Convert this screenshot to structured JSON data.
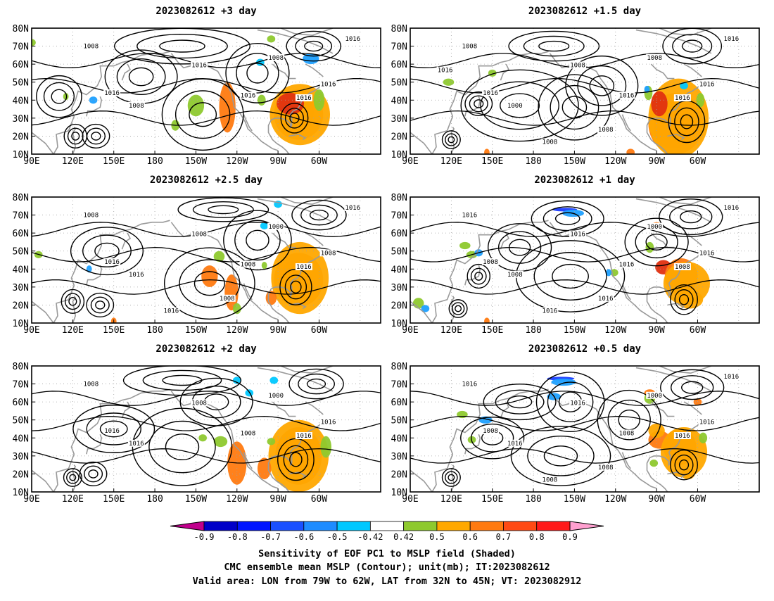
{
  "panels": [
    {
      "title": "2023082612  +3 day",
      "contour_labels": [
        "1008",
        "1016",
        "1008",
        "1016",
        "1008",
        "1016",
        "1016",
        "1016",
        "1016"
      ],
      "blobs": [
        [
          -78,
          33,
          14,
          11,
          "#ff1a1a"
        ],
        [
          -75,
          32,
          18,
          14,
          "#ff7a10"
        ],
        [
          -74,
          32,
          22,
          17,
          "#ffa800"
        ],
        [
          -81,
          38,
          10,
          6,
          "#e03010"
        ],
        [
          -127,
          36,
          6,
          14,
          "#ff7a10"
        ],
        [
          -150,
          37,
          6,
          6,
          "#8ec92e"
        ],
        [
          -165,
          26,
          3,
          3,
          "#8ec92e"
        ],
        [
          -102,
          40,
          3,
          3,
          "#8ec92e"
        ],
        [
          -60,
          40,
          4,
          6,
          "#8ec92e"
        ],
        [
          -95,
          74,
          3,
          2,
          "#8ec92e"
        ],
        [
          -66,
          63,
          6,
          3,
          "#1ea0ff"
        ],
        [
          -103,
          61,
          3,
          2,
          "#00c8ff"
        ],
        [
          135,
          40,
          3,
          2,
          "#1ea0ff"
        ],
        [
          115,
          42,
          2,
          2,
          "#8ec92e"
        ],
        [
          90,
          72,
          3,
          2,
          "#8ec92e"
        ]
      ]
    },
    {
      "title": "2023082612  +1.5 day",
      "contour_labels": [
        "1008",
        "1016",
        "1000",
        "1008",
        "1008",
        "1016",
        "1016",
        "1016",
        "1016",
        "1008",
        "1008",
        "1016"
      ],
      "blobs": [
        [
          -78,
          25,
          14,
          12,
          "#ff1a1a"
        ],
        [
          -76,
          27,
          20,
          17,
          "#ff7a10"
        ],
        [
          -74,
          30,
          22,
          22,
          "#ffa800"
        ],
        [
          -88,
          38,
          6,
          7,
          "#e03010"
        ],
        [
          -96,
          44,
          3,
          4,
          "#8ec92e"
        ],
        [
          -58,
          40,
          3,
          4,
          "#8ec92e"
        ],
        [
          -109,
          11,
          3,
          2,
          "#ff7a10"
        ],
        [
          118,
          50,
          4,
          2,
          "#8ec92e"
        ],
        [
          150,
          55,
          3,
          2,
          "#8ec92e"
        ],
        [
          -97,
          46,
          2,
          2,
          "#1ea0ff"
        ],
        [
          -70,
          48,
          3,
          2,
          "#00c8ff"
        ],
        [
          146,
          11,
          2,
          2,
          "#ff7a10"
        ]
      ]
    },
    {
      "title": "2023082612  +2.5 day",
      "contour_labels": [
        "1008",
        "1016",
        "1016",
        "1008",
        "1000",
        "1008",
        "1016",
        "1008",
        "1016",
        "1016",
        "1008"
      ],
      "blobs": [
        [
          -77,
          34,
          12,
          11,
          "#ff1a1a"
        ],
        [
          -75,
          34,
          18,
          15,
          "#ff7a10"
        ],
        [
          -74,
          35,
          21,
          20,
          "#ffa800"
        ],
        [
          -140,
          36,
          6,
          6,
          "#ff7a10"
        ],
        [
          -124,
          27,
          5,
          10,
          "#ff7a10"
        ],
        [
          -95,
          24,
          4,
          4,
          "#ff7a10"
        ],
        [
          -133,
          47,
          4,
          3,
          "#8ec92e"
        ],
        [
          -100,
          42,
          2,
          2,
          "#8ec92e"
        ],
        [
          -120,
          18,
          3,
          3,
          "#8ec92e"
        ],
        [
          95,
          48,
          3,
          2,
          "#8ec92e"
        ],
        [
          150,
          11,
          2,
          2,
          "#ff7a10"
        ],
        [
          -90,
          76,
          3,
          2,
          "#00c8ff"
        ],
        [
          -100,
          64,
          3,
          2,
          "#00c8ff"
        ],
        [
          132,
          40,
          2,
          2,
          "#1ea0ff"
        ]
      ]
    },
    {
      "title": "2023082612  +1 day",
      "contour_labels": [
        "1016",
        "1008",
        "1008",
        "1016",
        "1000",
        "1016",
        "1008",
        "1016",
        "1016",
        "1016",
        "1016"
      ],
      "blobs": [
        [
          -90,
          64,
          4,
          2,
          "#ff7a10"
        ],
        [
          -85,
          41,
          6,
          4,
          "#e03010"
        ],
        [
          -72,
          36,
          12,
          10,
          "#ff7a10"
        ],
        [
          -68,
          32,
          17,
          12,
          "#ffa800"
        ],
        [
          -95,
          52,
          3,
          3,
          "#8ec92e"
        ],
        [
          -66,
          23,
          10,
          5,
          "#ffa800"
        ],
        [
          -157,
          73,
          9,
          1,
          "#1a3cff"
        ],
        [
          -151,
          71,
          8,
          2,
          "#1ea0ff"
        ],
        [
          130,
          53,
          4,
          2,
          "#8ec92e"
        ],
        [
          135,
          48,
          4,
          2,
          "#8ec92e"
        ],
        [
          140,
          49,
          3,
          2,
          "#1ea0ff"
        ],
        [
          96,
          21,
          4,
          3,
          "#8ec92e"
        ],
        [
          101,
          18,
          3,
          2,
          "#1ea0ff"
        ],
        [
          146,
          11,
          2,
          2,
          "#ff7a10"
        ],
        [
          -121,
          38,
          3,
          2,
          "#8ec92e"
        ],
        [
          -125,
          38,
          2,
          2,
          "#1ea0ff"
        ]
      ]
    },
    {
      "title": "2023082612  +2 day",
      "contour_labels": [
        "1008",
        "1016",
        "1016",
        "1008",
        "1000",
        "1008",
        "1016",
        "1016"
      ],
      "blobs": [
        [
          -76,
          30,
          12,
          12,
          "#ff1a1a"
        ],
        [
          -75,
          30,
          17,
          16,
          "#ff7a10"
        ],
        [
          -75,
          30,
          22,
          20,
          "#ffa800"
        ],
        [
          -120,
          26,
          7,
          12,
          "#ff7a10"
        ],
        [
          -100,
          23,
          5,
          6,
          "#ff7a10"
        ],
        [
          -132,
          38,
          5,
          3,
          "#8ec92e"
        ],
        [
          -145,
          40,
          3,
          2,
          "#8ec92e"
        ],
        [
          -95,
          38,
          3,
          2,
          "#8ec92e"
        ],
        [
          -55,
          35,
          4,
          6,
          "#8ec92e"
        ],
        [
          -93,
          72,
          3,
          2,
          "#00c8ff"
        ],
        [
          -111,
          65,
          3,
          2,
          "#00c8ff"
        ],
        [
          -120,
          72,
          3,
          2,
          "#00c8ff"
        ]
      ]
    },
    {
      "title": "2023082612  +0.5 day",
      "contour_labels": [
        "1016",
        "1008",
        "1016",
        "1016",
        "1000",
        "1008",
        "1016",
        "1016",
        "1016",
        "1008",
        "1008"
      ],
      "blobs": [
        [
          -88,
          39,
          8,
          5,
          "#ff7a10"
        ],
        [
          -73,
          35,
          12,
          10,
          "#ff7a10"
        ],
        [
          -70,
          32,
          17,
          14,
          "#ffa800"
        ],
        [
          -90,
          44,
          6,
          4,
          "#ffa800"
        ],
        [
          -95,
          65,
          4,
          2,
          "#ff7a10"
        ],
        [
          -95,
          62,
          4,
          3,
          "#8ec92e"
        ],
        [
          -160,
          73,
          10,
          1,
          "#1a3cff"
        ],
        [
          -158,
          71,
          9,
          2,
          "#1ea0ff"
        ],
        [
          -165,
          63,
          5,
          2,
          "#1ea0ff"
        ],
        [
          145,
          50,
          5,
          2,
          "#1ea0ff"
        ],
        [
          128,
          53,
          4,
          2,
          "#8ec92e"
        ],
        [
          135,
          39,
          3,
          2,
          "#8ec92e"
        ],
        [
          -56,
          40,
          3,
          3,
          "#8ec92e"
        ],
        [
          -60,
          60,
          3,
          2,
          "#ff7a10"
        ],
        [
          -67,
          20,
          5,
          3,
          "#ffa800"
        ],
        [
          -92,
          26,
          3,
          2,
          "#8ec92e"
        ]
      ]
    }
  ],
  "axes": {
    "lon_labels": [
      "90E",
      "120E",
      "150E",
      "180",
      "150W",
      "120W",
      "90W",
      "60W"
    ],
    "lat_labels": [
      "80N",
      "70N",
      "60N",
      "50N",
      "40N",
      "30N",
      "20N",
      "10N"
    ]
  },
  "colorbar": {
    "tick_labels": [
      "-0.9",
      "-0.8",
      "-0.7",
      "-0.6",
      "-0.5",
      "-0.42",
      "0.42",
      "0.5",
      "0.6",
      "0.7",
      "0.8",
      "0.9"
    ],
    "colors": [
      "#c0008c",
      "#0000c8",
      "#0014ff",
      "#1a50ff",
      "#1e8cff",
      "#00c8ff",
      "#ffffff",
      "#8ec92e",
      "#ffa800",
      "#ff7a10",
      "#ff4a14",
      "#ff1a1a",
      "#ffa0d0"
    ]
  },
  "caption": {
    "line1": "Sensitivity of EOF PC1 to MSLP field (Shaded)",
    "line2": "CMC ensemble mean MSLP (Contour); unit(mb); IT:2023082612",
    "line3": "Valid area: LON from 79W to 62W, LAT from 32N to 45N; VT: 2023082912"
  }
}
